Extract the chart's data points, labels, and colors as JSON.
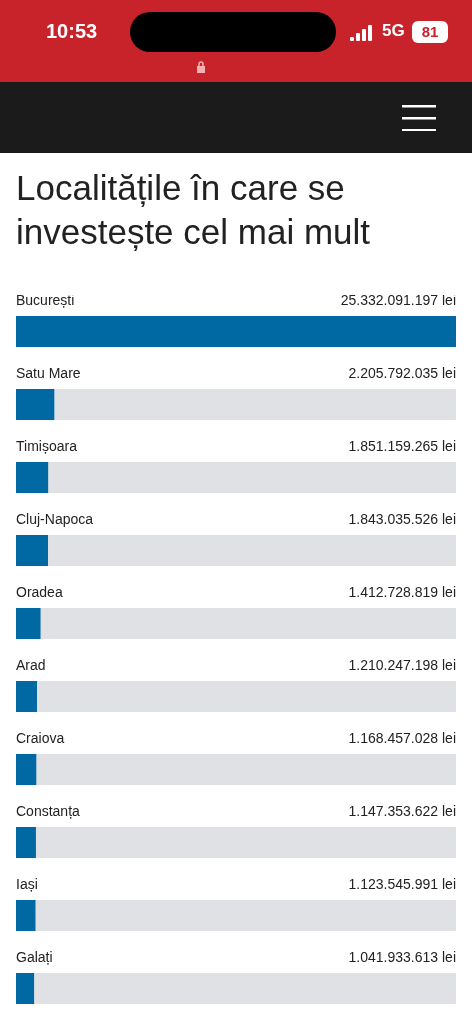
{
  "chart_data": {
    "type": "bar",
    "orientation": "horizontal",
    "title": "Localitățile în care se investește cel mai mult",
    "annotations": [
      "10:53",
      "5G",
      "81"
    ],
    "categories": [
      "București",
      "Satu Mare",
      "Timișoara",
      "Cluj-Napoca",
      "Oradea",
      "Arad",
      "Craiova",
      "Constanța",
      "Iași",
      "Galați"
    ],
    "values": [
      25332091197,
      2205792035,
      1851159265,
      1843035526,
      1412728819,
      1210247198,
      1168457028,
      1147353622,
      1123545991,
      1041933613
    ],
    "value_labels": [
      "25.332.091.197 lei",
      "2.205.792.035 lei",
      "1.851.159.265 lei",
      "1.843.035.526 lei",
      "1.412.728.819 lei",
      "1.210.247.198 lei",
      "1.168.457.028 lei",
      "1.147.353.622 lei",
      "1.123.545.991 lei",
      "1.041.933.613 lei"
    ],
    "color": "#0068a3"
  }
}
